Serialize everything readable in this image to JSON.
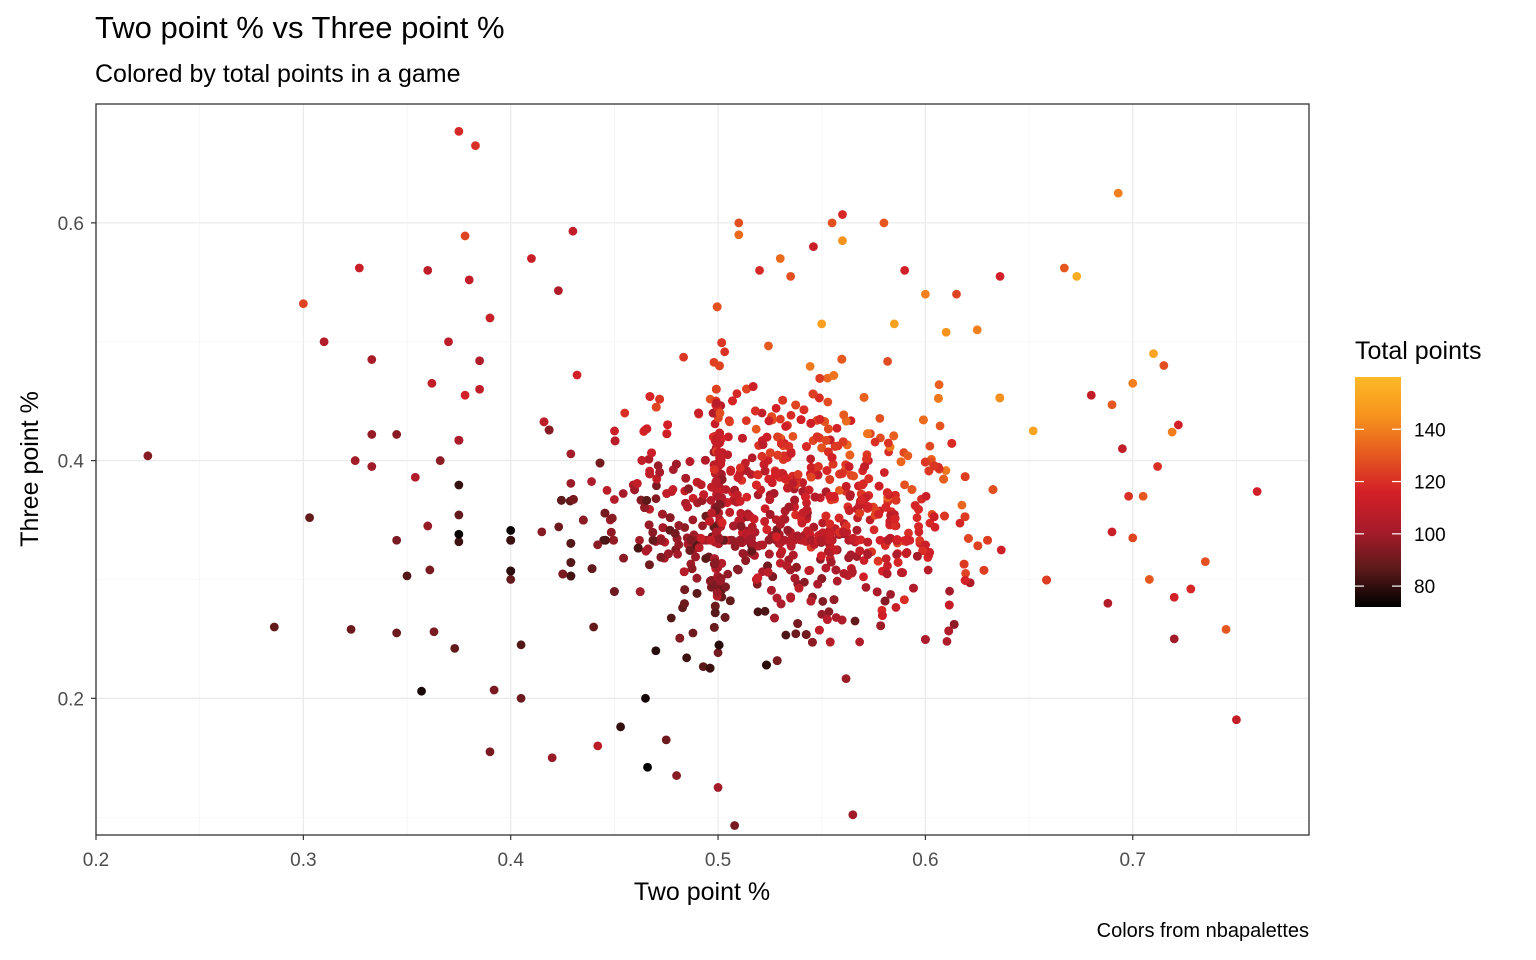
{
  "chart_data": {
    "type": "scatter",
    "title": "Two point % vs Three point %",
    "subtitle": "Colored by total points in a game",
    "xlabel": "Two point %",
    "ylabel": "Three point %",
    "caption": "Colors from nbapalettes",
    "xlim": [
      0.2,
      0.785
    ],
    "ylim": [
      0.085,
      0.7
    ],
    "x_ticks": [
      "0.2",
      "0.3",
      "0.4",
      "0.5",
      "0.6",
      "0.7"
    ],
    "y_ticks": [
      "0.2",
      "0.4",
      "0.6"
    ],
    "grid": true,
    "legend": {
      "title": "Total points",
      "position": "right",
      "range": [
        72,
        160
      ],
      "ticks": [
        "80",
        "100",
        "120",
        "140"
      ],
      "colors": [
        "#000000",
        "#5c1a1a",
        "#a81b2a",
        "#d42027",
        "#e65a1f",
        "#f7941d",
        "#fdb927"
      ]
    },
    "points": [
      [
        0.225,
        0.404,
        95
      ],
      [
        0.286,
        0.26,
        88
      ],
      [
        0.3,
        0.532,
        125
      ],
      [
        0.303,
        0.352,
        88
      ],
      [
        0.31,
        0.5,
        105
      ],
      [
        0.323,
        0.258,
        90
      ],
      [
        0.325,
        0.4,
        100
      ],
      [
        0.327,
        0.562,
        112
      ],
      [
        0.333,
        0.485,
        102
      ],
      [
        0.333,
        0.422,
        98
      ],
      [
        0.333,
        0.395,
        100
      ],
      [
        0.345,
        0.333,
        92
      ],
      [
        0.345,
        0.422,
        95
      ],
      [
        0.345,
        0.255,
        90
      ],
      [
        0.35,
        0.303,
        85
      ],
      [
        0.354,
        0.386,
        104
      ],
      [
        0.357,
        0.206,
        76
      ],
      [
        0.36,
        0.56,
        108
      ],
      [
        0.36,
        0.345,
        98
      ],
      [
        0.361,
        0.308,
        92
      ],
      [
        0.362,
        0.465,
        110
      ],
      [
        0.363,
        0.256,
        92
      ],
      [
        0.366,
        0.4,
        96
      ],
      [
        0.37,
        0.5,
        108
      ],
      [
        0.373,
        0.242,
        88
      ],
      [
        0.375,
        0.677,
        118
      ],
      [
        0.378,
        0.589,
        125
      ],
      [
        0.378,
        0.455,
        115
      ],
      [
        0.38,
        0.552,
        110
      ],
      [
        0.383,
        0.665,
        120
      ],
      [
        0.385,
        0.46,
        110
      ],
      [
        0.385,
        0.484,
        104
      ],
      [
        0.39,
        0.155,
        92
      ],
      [
        0.392,
        0.207,
        92
      ],
      [
        0.39,
        0.52,
        112
      ],
      [
        0.4,
        0.3,
        88
      ],
      [
        0.405,
        0.245,
        85
      ],
      [
        0.405,
        0.2,
        90
      ],
      [
        0.41,
        0.57,
        112
      ],
      [
        0.415,
        0.34,
        95
      ],
      [
        0.42,
        0.15,
        98
      ],
      [
        0.423,
        0.543,
        104
      ],
      [
        0.43,
        0.593,
        110
      ],
      [
        0.432,
        0.472,
        115
      ],
      [
        0.44,
        0.26,
        88
      ],
      [
        0.442,
        0.16,
        108
      ],
      [
        0.448,
        0.35,
        100
      ],
      [
        0.453,
        0.176,
        80
      ],
      [
        0.455,
        0.44,
        120
      ],
      [
        0.465,
        0.2,
        75
      ],
      [
        0.466,
        0.142,
        72
      ],
      [
        0.47,
        0.24,
        78
      ],
      [
        0.475,
        0.165,
        90
      ],
      [
        0.48,
        0.135,
        95
      ],
      [
        0.5,
        0.125,
        100
      ],
      [
        0.508,
        0.093,
        92
      ],
      [
        0.51,
        0.6,
        128
      ],
      [
        0.51,
        0.59,
        135
      ],
      [
        0.52,
        0.56,
        118
      ],
      [
        0.53,
        0.57,
        135
      ],
      [
        0.535,
        0.555,
        128
      ],
      [
        0.546,
        0.58,
        112
      ],
      [
        0.55,
        0.515,
        150
      ],
      [
        0.555,
        0.6,
        128
      ],
      [
        0.56,
        0.607,
        118
      ],
      [
        0.56,
        0.585,
        145
      ],
      [
        0.565,
        0.102,
        100
      ],
      [
        0.58,
        0.6,
        130
      ],
      [
        0.585,
        0.515,
        150
      ],
      [
        0.59,
        0.56,
        115
      ],
      [
        0.6,
        0.54,
        140
      ],
      [
        0.61,
        0.508,
        145
      ],
      [
        0.615,
        0.54,
        125
      ],
      [
        0.625,
        0.51,
        140
      ],
      [
        0.636,
        0.555,
        115
      ],
      [
        0.652,
        0.425,
        152
      ],
      [
        0.667,
        0.562,
        130
      ],
      [
        0.673,
        0.555,
        155
      ],
      [
        0.69,
        0.447,
        130
      ],
      [
        0.693,
        0.625,
        140
      ],
      [
        0.7,
        0.465,
        140
      ],
      [
        0.705,
        0.37,
        130
      ],
      [
        0.71,
        0.49,
        152
      ],
      [
        0.712,
        0.395,
        120
      ],
      [
        0.715,
        0.48,
        128
      ],
      [
        0.719,
        0.424,
        140
      ],
      [
        0.72,
        0.25,
        100
      ],
      [
        0.72,
        0.285,
        115
      ],
      [
        0.722,
        0.43,
        115
      ],
      [
        0.728,
        0.292,
        118
      ],
      [
        0.735,
        0.315,
        128
      ],
      [
        0.745,
        0.258,
        130
      ],
      [
        0.75,
        0.182,
        110
      ],
      [
        0.76,
        0.374,
        115
      ],
      [
        0.708,
        0.3,
        130
      ],
      [
        0.7,
        0.335,
        125
      ],
      [
        0.698,
        0.37,
        120
      ],
      [
        0.69,
        0.34,
        112
      ],
      [
        0.695,
        0.41,
        110
      ],
      [
        0.688,
        0.28,
        105
      ],
      [
        0.68,
        0.455,
        110
      ]
    ]
  }
}
